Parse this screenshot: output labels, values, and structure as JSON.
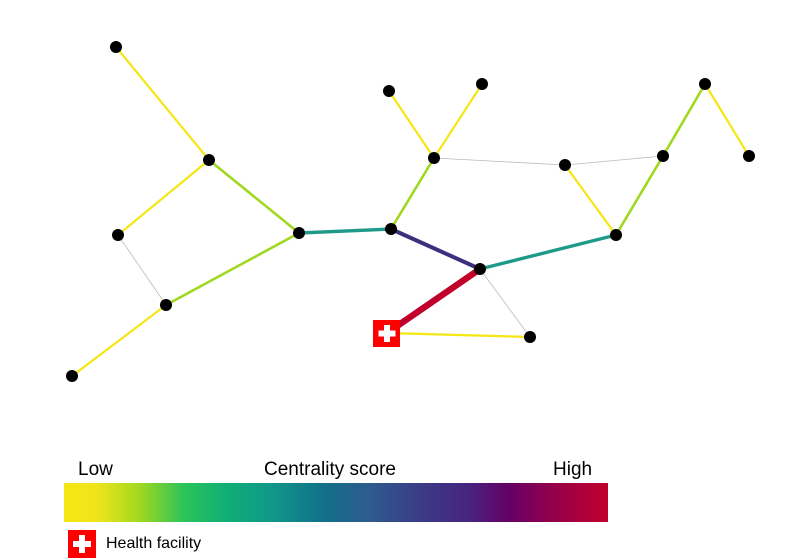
{
  "legend": {
    "low_label": "Low",
    "title": "Centrality score",
    "high_label": "High",
    "facility_label": "Health facility"
  },
  "colors": {
    "low": "#f5e614",
    "mid_low": "#9fd81f",
    "mid": "#1f9a8a",
    "high_mid": "#3c2f7e",
    "high": "#c0002a",
    "unused_edge": "#bbbbbb",
    "node": "#000000",
    "facility": "#ff0000"
  },
  "network": {
    "nodes": [
      {
        "id": "n1",
        "type": "node"
      },
      {
        "id": "n2",
        "type": "node"
      },
      {
        "id": "n3",
        "type": "node"
      },
      {
        "id": "n4",
        "type": "node"
      },
      {
        "id": "n5",
        "type": "node"
      },
      {
        "id": "n6",
        "type": "node"
      },
      {
        "id": "n7",
        "type": "node"
      },
      {
        "id": "n8",
        "type": "node"
      },
      {
        "id": "n9",
        "type": "node"
      },
      {
        "id": "n10",
        "type": "node"
      },
      {
        "id": "n11",
        "type": "node"
      },
      {
        "id": "n12",
        "type": "node"
      },
      {
        "id": "n13",
        "type": "node"
      },
      {
        "id": "n14",
        "type": "node"
      },
      {
        "id": "n15",
        "type": "node"
      },
      {
        "id": "n16",
        "type": "node"
      },
      {
        "id": "n17",
        "type": "node"
      },
      {
        "id": "hf",
        "type": "health-facility",
        "icon": "health-facility-icon"
      }
    ],
    "edges": [
      {
        "from": "n1",
        "to": "n2",
        "score": "low"
      },
      {
        "from": "n2",
        "to": "n3",
        "score": "low"
      },
      {
        "from": "n2",
        "to": "n4",
        "score": "mid_low"
      },
      {
        "from": "n3",
        "to": "n5",
        "score": "none"
      },
      {
        "from": "n4",
        "to": "n5",
        "score": "mid_low"
      },
      {
        "from": "n5",
        "to": "n6",
        "score": "low"
      },
      {
        "from": "n4",
        "to": "n7",
        "score": "mid"
      },
      {
        "from": "n7",
        "to": "n10",
        "score": "mid_low"
      },
      {
        "from": "n8",
        "to": "n10",
        "score": "low"
      },
      {
        "from": "n9",
        "to": "n10",
        "score": "low"
      },
      {
        "from": "n10",
        "to": "n13",
        "score": "none"
      },
      {
        "from": "n13",
        "to": "n14",
        "score": "none"
      },
      {
        "from": "n13",
        "to": "n16",
        "score": "low"
      },
      {
        "from": "n14",
        "to": "n16",
        "score": "mid_low"
      },
      {
        "from": "n14",
        "to": "n15",
        "score": "mid_low"
      },
      {
        "from": "n15",
        "to": "n17",
        "score": "low"
      },
      {
        "from": "n7",
        "to": "n11",
        "score": "high_mid"
      },
      {
        "from": "n11",
        "to": "n16",
        "score": "mid"
      },
      {
        "from": "n11",
        "to": "hf",
        "score": "high"
      },
      {
        "from": "n11",
        "to": "n12",
        "score": "none"
      },
      {
        "from": "hf",
        "to": "n12",
        "score": "low"
      }
    ]
  }
}
